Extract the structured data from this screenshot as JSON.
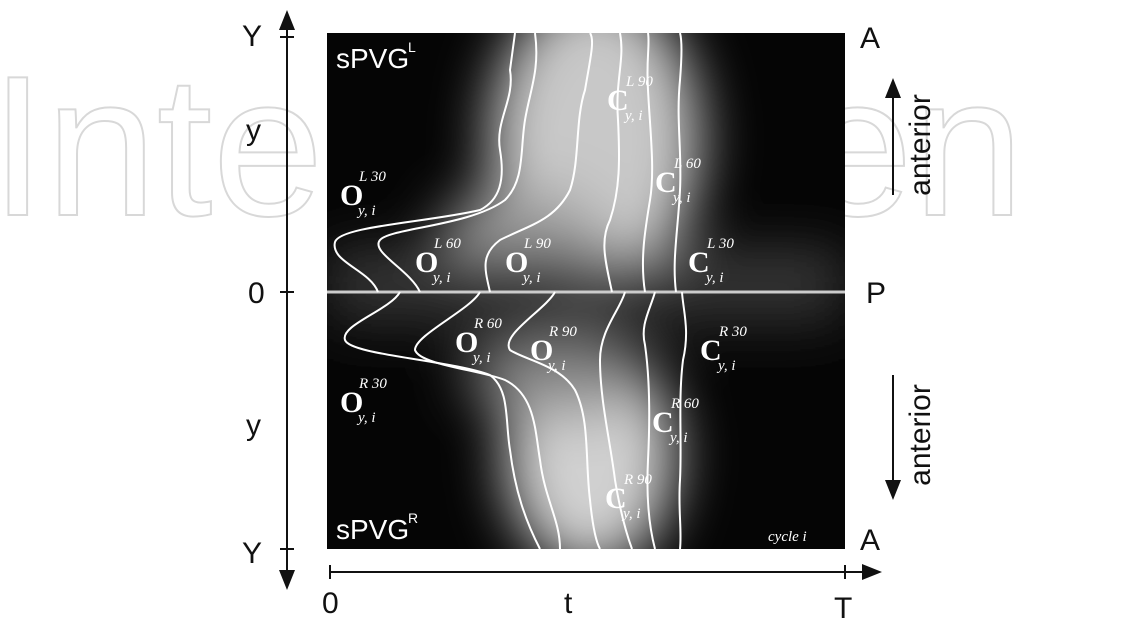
{
  "watermark": "IntechOpen",
  "left_axis": {
    "top": "Y",
    "upper": "y",
    "zero": "0",
    "lower": "y",
    "bottom": "Y"
  },
  "bottom_axis": {
    "start": "0",
    "middle": "t",
    "end": "T"
  },
  "right_axis": {
    "top": "A",
    "middle": "P",
    "bottom": "A",
    "upper_arrow": "anterior",
    "lower_arrow": "anterior"
  },
  "panels": {
    "top": {
      "name": "sPVG",
      "side": "L"
    },
    "bottom": {
      "name": "sPVG",
      "side": "R"
    },
    "cycle": "cycle i"
  },
  "labels": [
    {
      "letter": "O",
      "sup": "L 30",
      "sub": "y, i"
    },
    {
      "letter": "O",
      "sup": "L 60",
      "sub": "y, i"
    },
    {
      "letter": "O",
      "sup": "L 90",
      "sub": "y, i"
    },
    {
      "letter": "C",
      "sup": "L 90",
      "sub": "y, i"
    },
    {
      "letter": "C",
      "sup": "L 60",
      "sub": "y, i"
    },
    {
      "letter": "C",
      "sup": "L 30",
      "sub": "y, i"
    },
    {
      "letter": "O",
      "sup": "R 60",
      "sub": "y, i"
    },
    {
      "letter": "O",
      "sup": "R 90",
      "sub": "y, i"
    },
    {
      "letter": "C",
      "sup": "R 30",
      "sub": "y, i"
    },
    {
      "letter": "O",
      "sup": "R 30",
      "sub": "y, i"
    },
    {
      "letter": "C",
      "sup": "R 60",
      "sub": "y, i"
    },
    {
      "letter": "C",
      "sup": "R 90",
      "sub": "y, i"
    }
  ]
}
